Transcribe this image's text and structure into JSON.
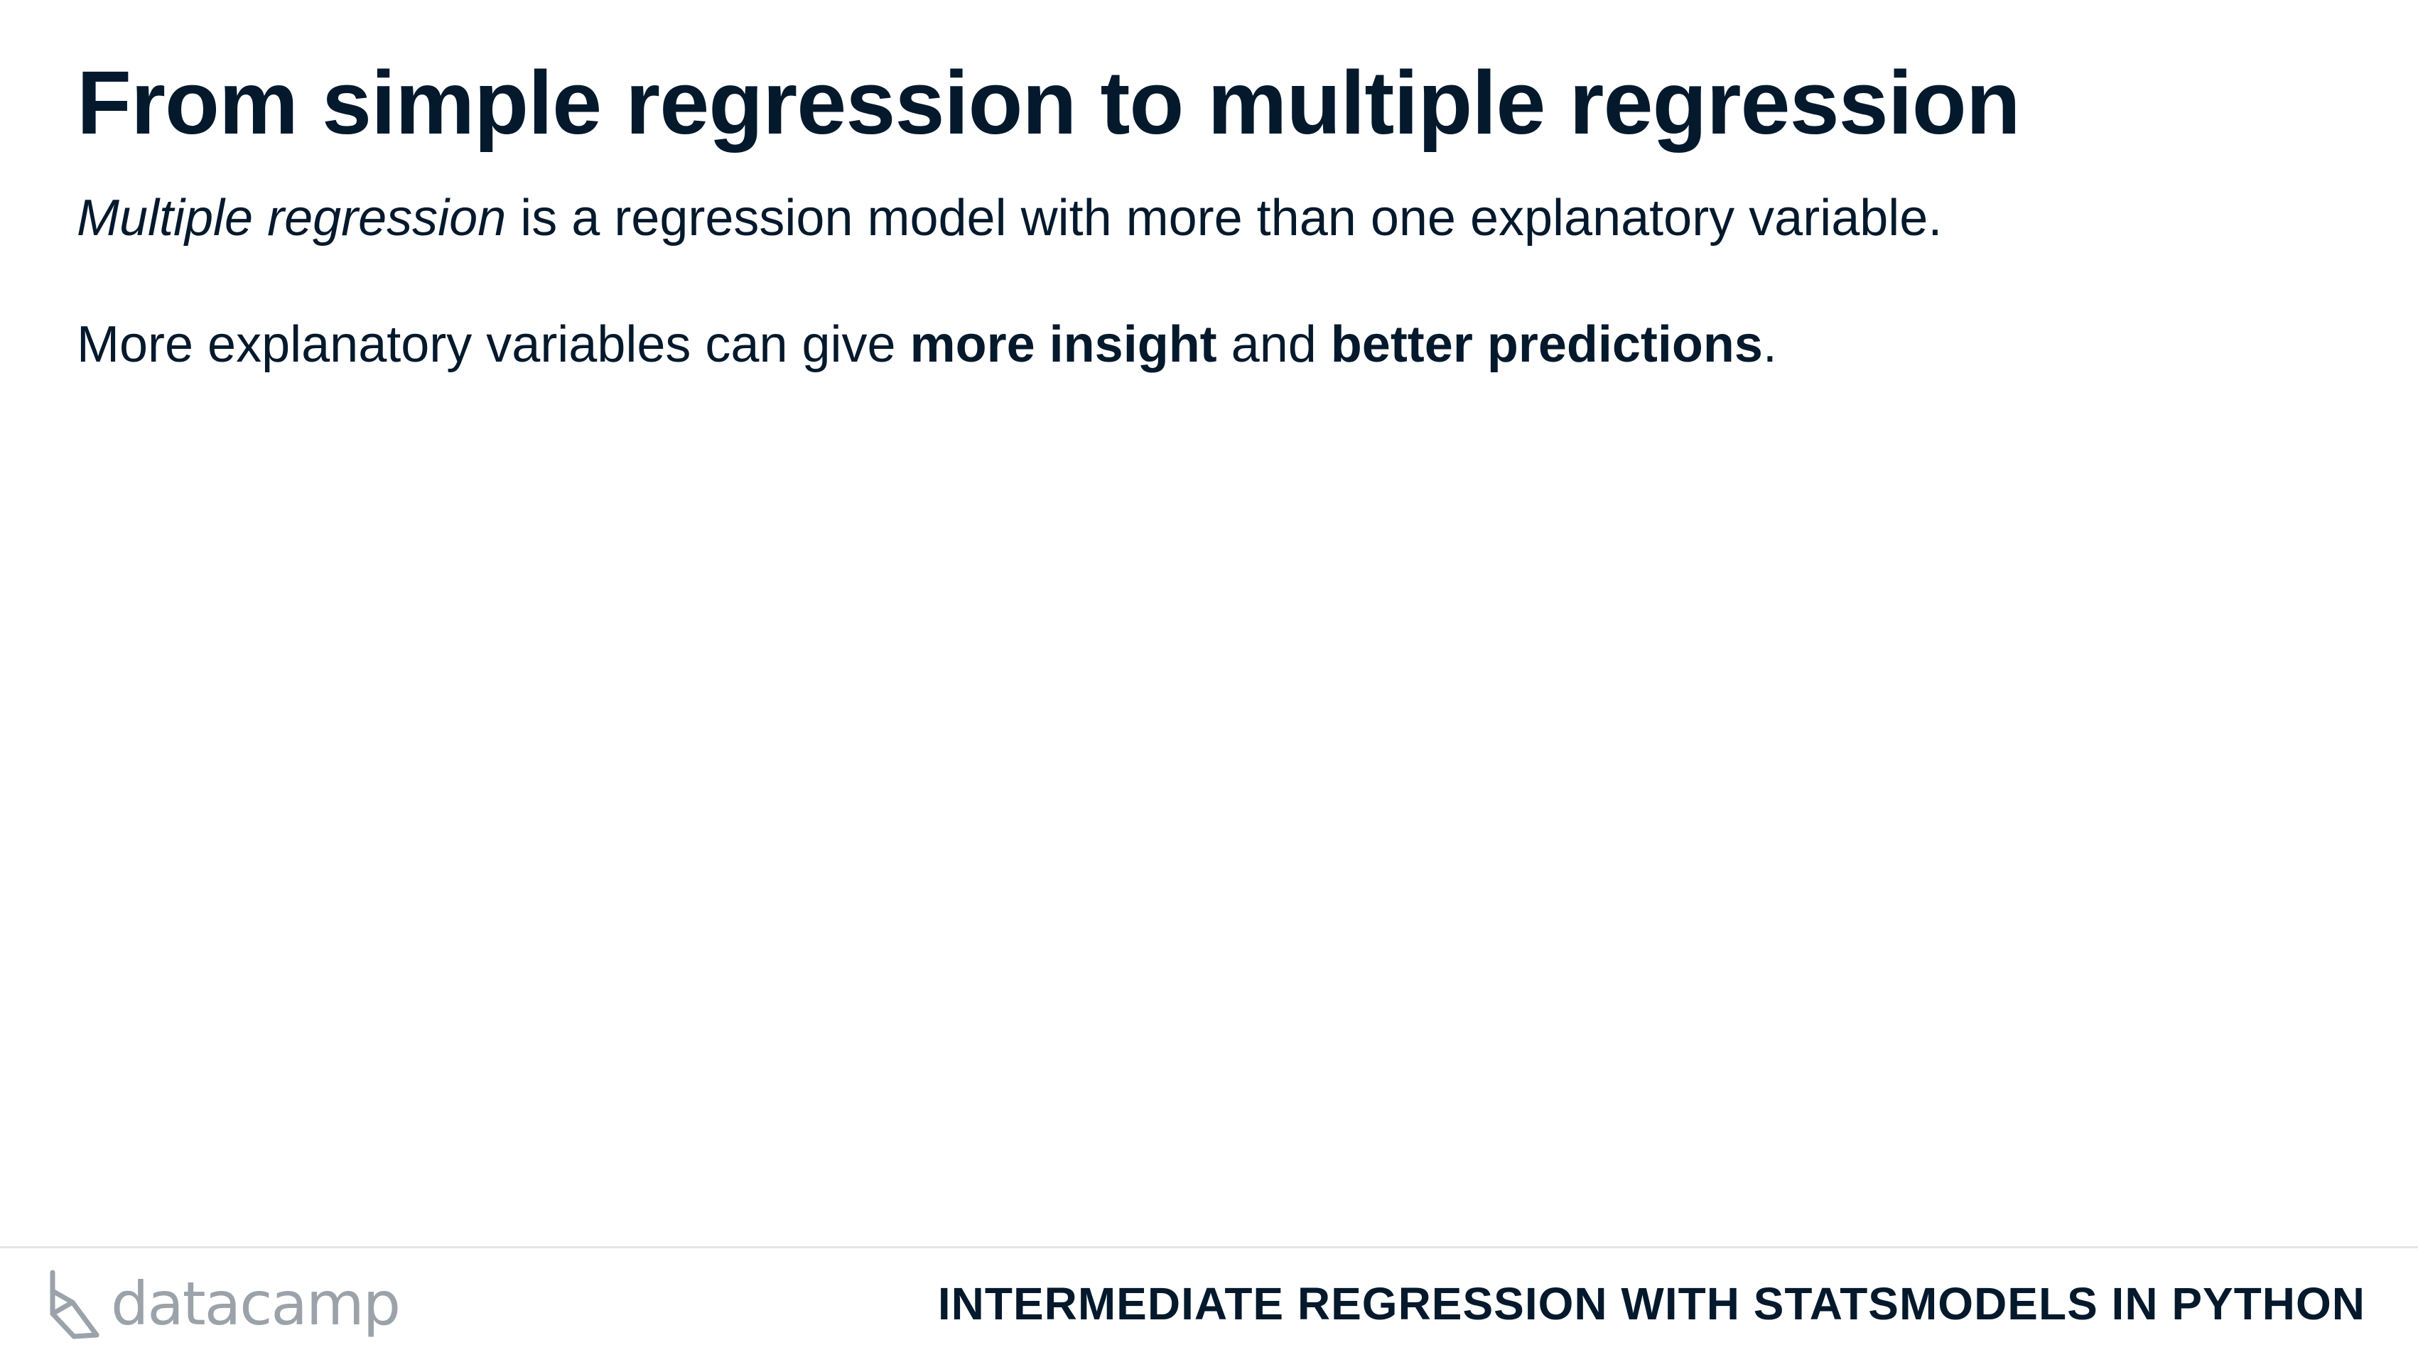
{
  "slide": {
    "title": "From simple regression to multiple regression",
    "paragraph1": {
      "emphasis": "Multiple regression",
      "rest": " is a regression model with more than one explanatory variable."
    },
    "paragraph2": {
      "lead": "More explanatory variables can give ",
      "bold1": "more insight",
      "middle": " and ",
      "bold2": "better predictions",
      "end": "."
    }
  },
  "footer": {
    "logo_text": "datacamp",
    "logo_icon": "datacamp-logo-icon",
    "course_title": "INTERMEDIATE REGRESSION WITH STATSMODELS IN PYTHON"
  },
  "colors": {
    "text": "#05192d",
    "logo": "#9ba2aa",
    "divider": "#e5e5e5",
    "background": "#ffffff"
  }
}
